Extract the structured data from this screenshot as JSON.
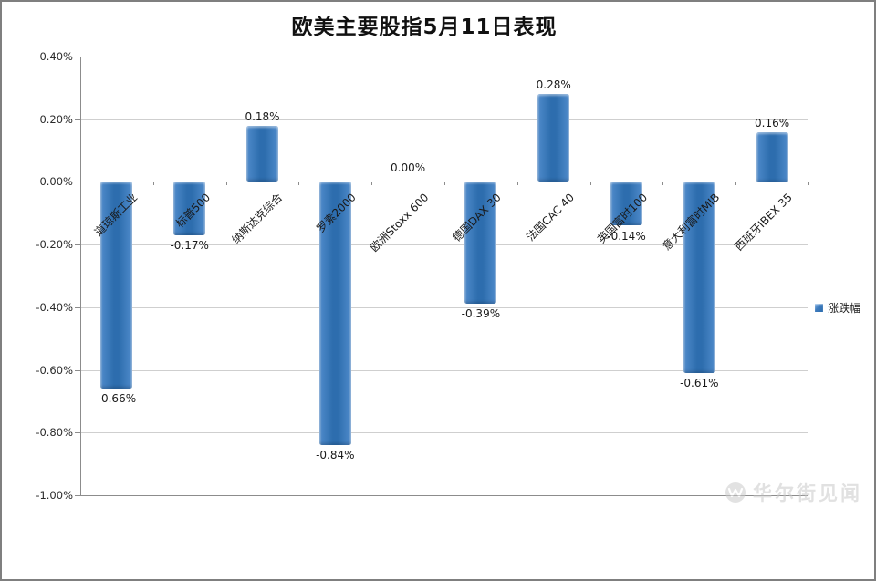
{
  "title": "欧美主要股指5月11日表现",
  "legend": {
    "label": "涨跌幅"
  },
  "watermark": {
    "text": "华尔街见闻"
  },
  "chart_data": {
    "type": "bar",
    "title": "欧美主要股指5月11日表现",
    "categories": [
      "道琼斯工业",
      "标普500",
      "纳斯达克综合",
      "罗素2000",
      "欧洲Stoxx 600",
      "德国DAX 30",
      "法国CAC 40",
      "英国富时100",
      "意大利富时MIB",
      "西班牙IBEX 35"
    ],
    "series": [
      {
        "name": "涨跌幅",
        "values": [
          -0.66,
          -0.17,
          0.18,
          -0.84,
          0.0,
          -0.39,
          0.28,
          -0.14,
          -0.61,
          0.16
        ]
      }
    ],
    "value_labels": [
      "-0.66%",
      "-0.17%",
      "0.18%",
      "-0.84%",
      "0.00%",
      "-0.39%",
      "0.28%",
      "-0.14%",
      "-0.61%",
      "0.16%"
    ],
    "xlabel": "",
    "ylabel": "",
    "ylim": [
      -1.0,
      0.4
    ],
    "ytick_step": 0.2,
    "ytick_labels": [
      "0.40%",
      "0.20%",
      "0.00%",
      "-0.20%",
      "-0.40%",
      "-0.60%",
      "-0.80%",
      "-1.00%"
    ],
    "grid": true,
    "legend_position": "right",
    "bar_color": "#2E74B5"
  }
}
